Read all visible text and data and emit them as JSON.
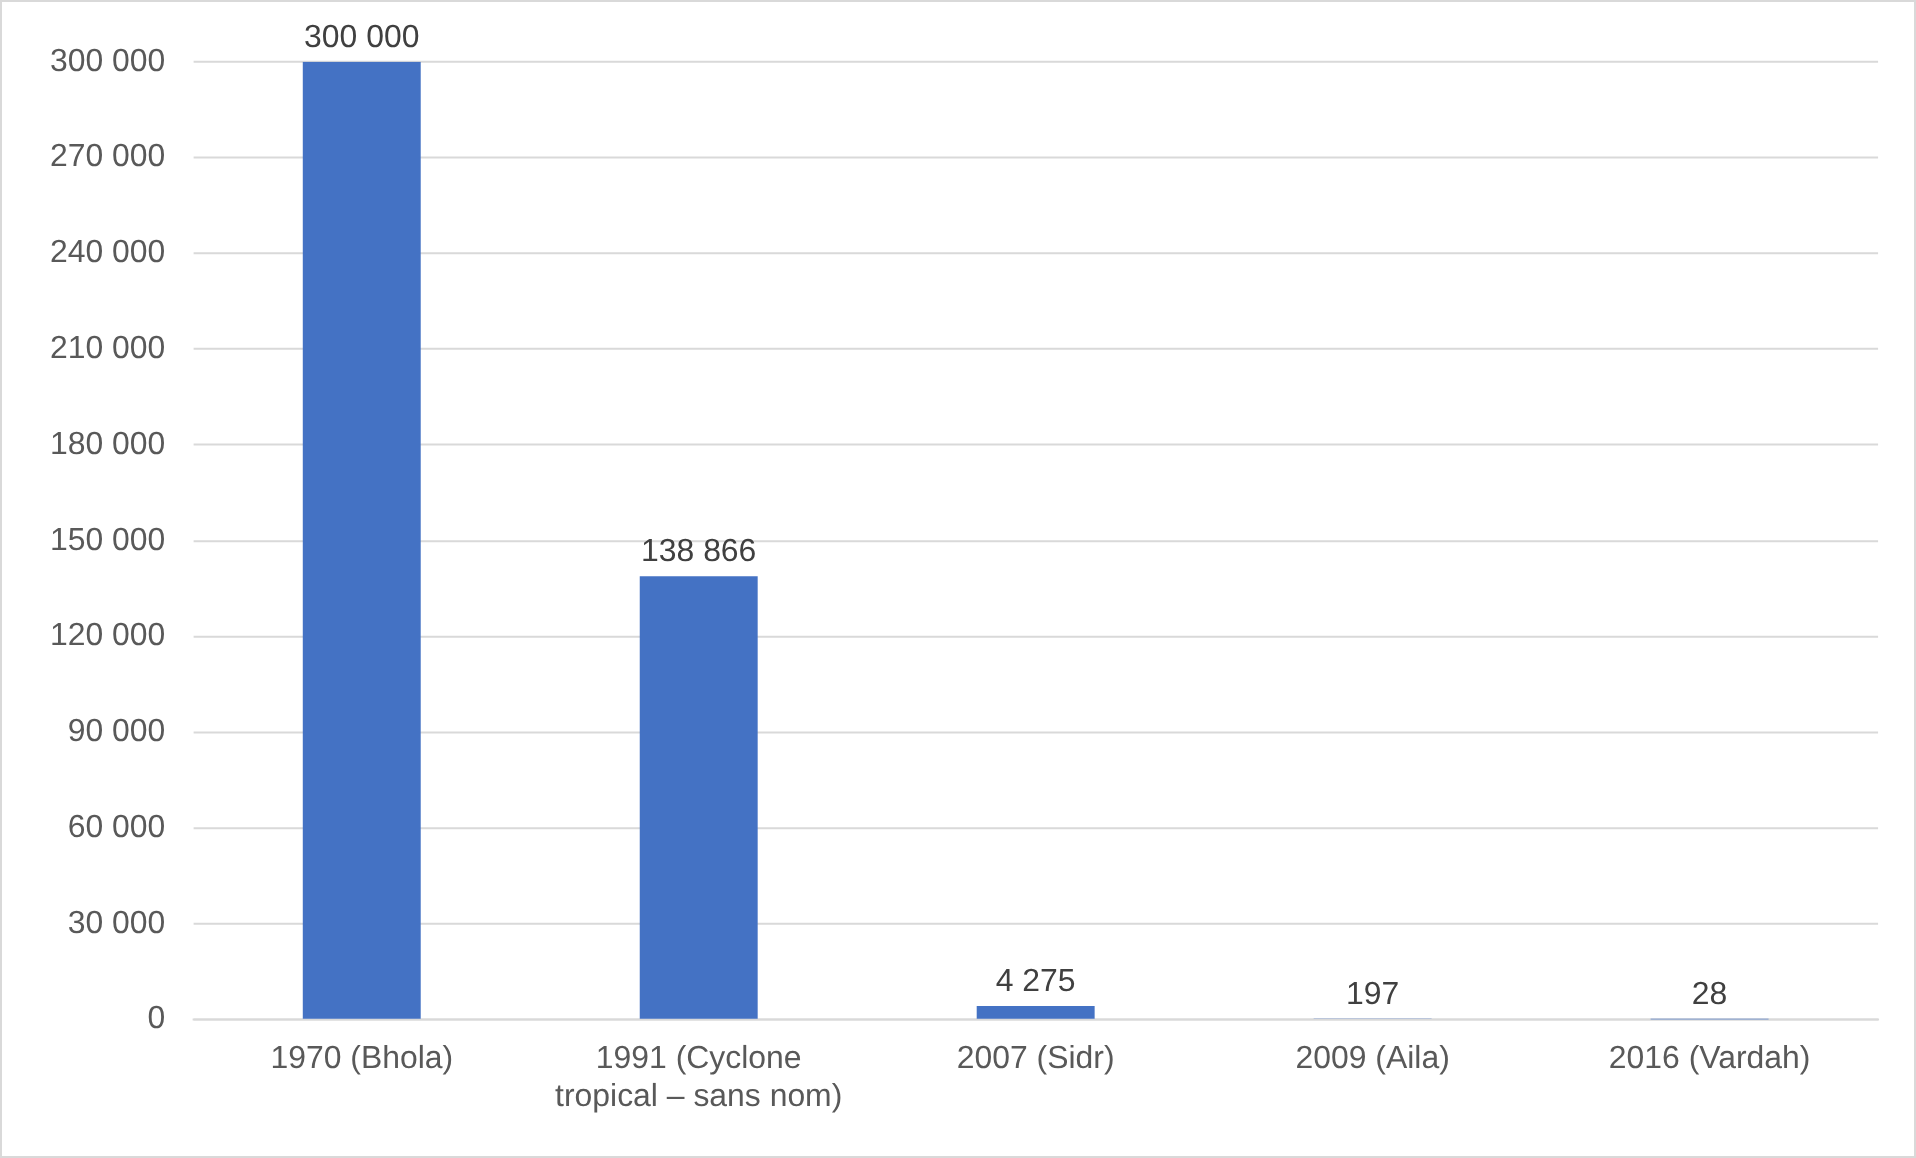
{
  "chart_data": {
    "type": "bar",
    "categories": [
      "1970 (Bhola)",
      "1991 (Cyclone tropical – sans nom)",
      "2007 (Sidr)",
      "2009 (Aila)",
      "2016 (Vardah)"
    ],
    "values": [
      300000,
      138866,
      4275,
      197,
      28
    ],
    "value_labels": [
      "300 000",
      "138 866",
      "4 275",
      "197",
      "28"
    ],
    "color": "#4472c4",
    "ylim": [
      0,
      300000
    ],
    "yticks": [
      {
        "value": 0,
        "label": "0"
      },
      {
        "value": 30000,
        "label": "30 000"
      },
      {
        "value": 60000,
        "label": "60 000"
      },
      {
        "value": 90000,
        "label": "90 000"
      },
      {
        "value": 120000,
        "label": "120 000"
      },
      {
        "value": 150000,
        "label": "150 000"
      },
      {
        "value": 180000,
        "label": "180 000"
      },
      {
        "value": 210000,
        "label": "210 000"
      },
      {
        "value": 240000,
        "label": "240 000"
      },
      {
        "value": 270000,
        "label": "270 000"
      },
      {
        "value": 300000,
        "label": "300 000"
      }
    ],
    "grid": "y"
  }
}
